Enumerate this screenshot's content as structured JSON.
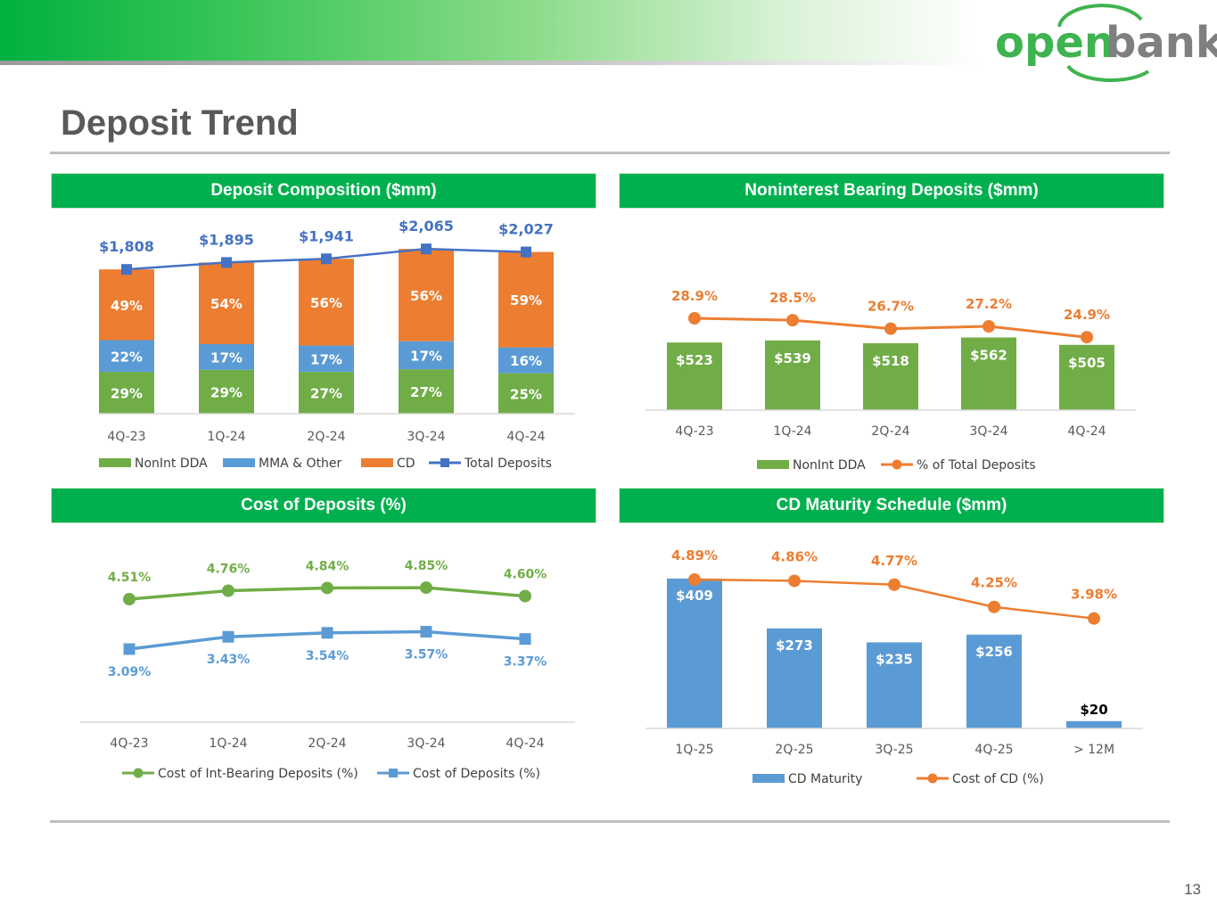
{
  "colors": {
    "green": "#70ad47",
    "blue": "#5b9bd5",
    "orange": "#ed7d31",
    "line_blue": "#4472c4",
    "header_green": "#00b04f",
    "brand_green": "#3fb34f",
    "brand_gray": "#7f7f7f"
  },
  "logo": {
    "part1": "open",
    "part2": "bank"
  },
  "page": {
    "title": "Deposit Trend",
    "number": "13"
  },
  "panels": {
    "composition": "Deposit Composition ($mm)",
    "noninterest": "Noninterest Bearing Deposits ($mm)",
    "cost": "Cost of Deposits (%)",
    "maturity": "CD Maturity Schedule ($mm)"
  },
  "chart_data": [
    {
      "id": "deposit-composition",
      "type": "bar",
      "title": "Deposit Composition ($mm)",
      "categories": [
        "4Q-23",
        "1Q-24",
        "2Q-24",
        "3Q-24",
        "4Q-24"
      ],
      "series": [
        {
          "name": "NonInt DDA",
          "type": "stacked-bar",
          "values": [
            29,
            29,
            27,
            27,
            25
          ],
          "labels": [
            "29%",
            "29%",
            "27%",
            "27%",
            "25%"
          ]
        },
        {
          "name": "MMA & Other",
          "type": "stacked-bar",
          "values": [
            22,
            17,
            17,
            17,
            16
          ],
          "labels": [
            "22%",
            "17%",
            "17%",
            "17%",
            "16%"
          ]
        },
        {
          "name": "CD",
          "type": "stacked-bar",
          "values": [
            49,
            54,
            56,
            56,
            59
          ],
          "labels": [
            "49%",
            "54%",
            "56%",
            "56%",
            "59%"
          ]
        },
        {
          "name": "Total Deposits",
          "type": "line",
          "values": [
            1808,
            1895,
            1941,
            2065,
            2027
          ],
          "labels": [
            "$1,808",
            "$1,895",
            "$1,941",
            "$2,065",
            "$2,027"
          ]
        }
      ],
      "legend": "bottom"
    },
    {
      "id": "noninterest-bearing",
      "type": "bar",
      "title": "Noninterest Bearing Deposits ($mm)",
      "categories": [
        "4Q-23",
        "1Q-24",
        "2Q-24",
        "3Q-24",
        "4Q-24"
      ],
      "series": [
        {
          "name": "NonInt DDA",
          "type": "bar",
          "values": [
            523,
            539,
            518,
            562,
            505
          ],
          "labels": [
            "$523",
            "$539",
            "$518",
            "$562",
            "$505"
          ]
        },
        {
          "name": "% of Total Deposits",
          "type": "line",
          "values": [
            28.9,
            28.5,
            26.7,
            27.2,
            24.9
          ],
          "labels": [
            "28.9%",
            "28.5%",
            "26.7%",
            "27.2%",
            "24.9%"
          ]
        }
      ],
      "legend": "bottom"
    },
    {
      "id": "cost-of-deposits",
      "type": "line",
      "title": "Cost of Deposits (%)",
      "categories": [
        "4Q-23",
        "1Q-24",
        "2Q-24",
        "3Q-24",
        "4Q-24"
      ],
      "series": [
        {
          "name": "Cost of Int-Bearing Deposits (%)",
          "values": [
            4.51,
            4.76,
            4.84,
            4.85,
            4.6
          ],
          "labels": [
            "4.51%",
            "4.76%",
            "4.84%",
            "4.85%",
            "4.60%"
          ]
        },
        {
          "name": "Cost of Deposits (%)",
          "values": [
            3.09,
            3.43,
            3.54,
            3.57,
            3.37
          ],
          "labels": [
            "3.09%",
            "3.43%",
            "3.54%",
            "3.57%",
            "3.37%"
          ]
        }
      ],
      "legend": "bottom"
    },
    {
      "id": "cd-maturity",
      "type": "bar",
      "title": "CD Maturity Schedule ($mm)",
      "categories": [
        "1Q-25",
        "2Q-25",
        "3Q-25",
        "4Q-25",
        "> 12M"
      ],
      "series": [
        {
          "name": "CD Maturity",
          "type": "bar",
          "values": [
            409,
            273,
            235,
            256,
            20
          ],
          "labels": [
            "$409",
            "$273",
            "$235",
            "$256",
            "$20"
          ]
        },
        {
          "name": "Cost of CD (%)",
          "type": "line",
          "values": [
            4.89,
            4.86,
            4.77,
            4.25,
            3.98
          ],
          "labels": [
            "4.89%",
            "4.86%",
            "4.77%",
            "4.25%",
            "3.98%"
          ]
        }
      ],
      "legend": "bottom"
    }
  ]
}
